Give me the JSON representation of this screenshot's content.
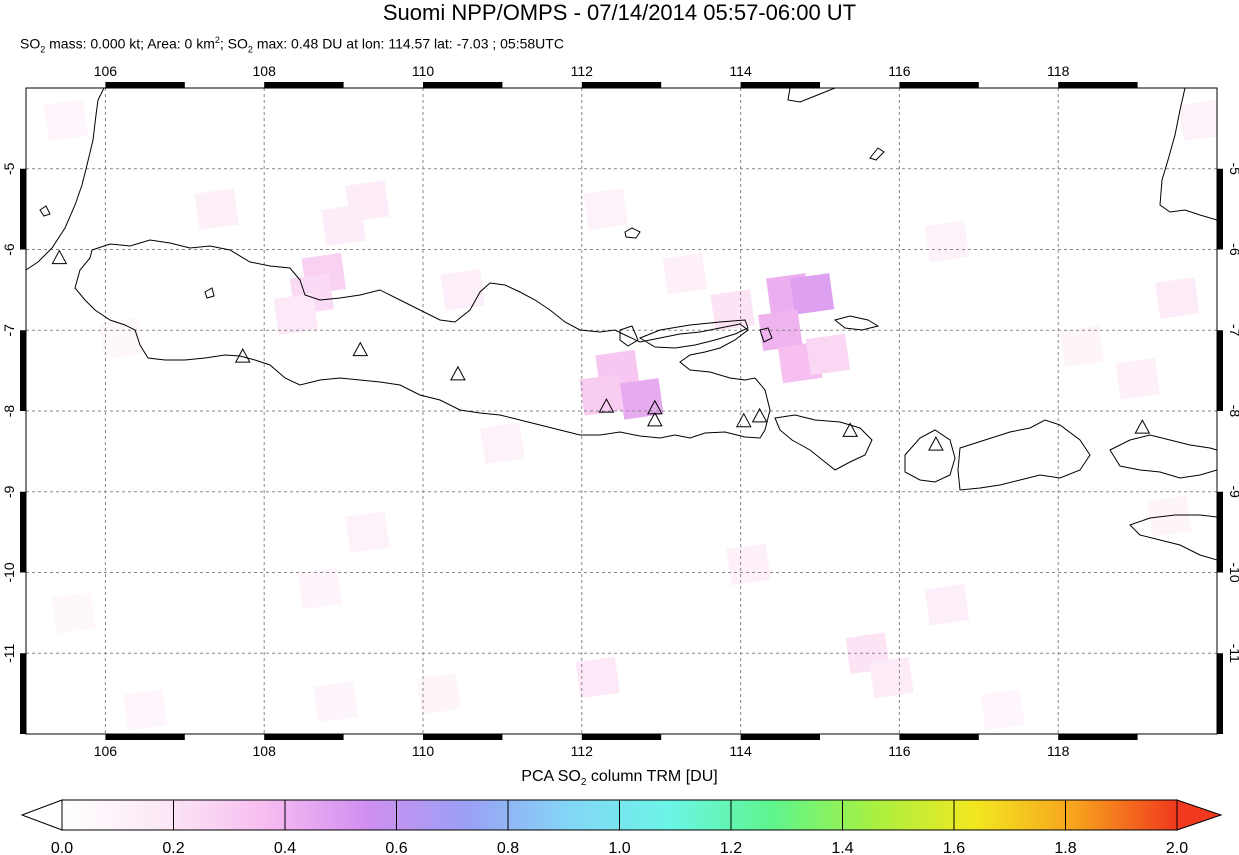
{
  "title": "Suomi NPP/OMPS - 07/14/2014 05:57-06:00 UT",
  "subtitle": {
    "mass_label": "SO",
    "mass_sub": "2",
    "mass_text": " mass: 0.000 kt; Area: 0 km",
    "area_sup": "2",
    "max_label": "; SO",
    "max_sub": "2",
    "max_text": " max: 0.48 DU at lon: 114.57 lat: -7.03 ; 05:58UTC"
  },
  "map": {
    "lon_range": [
      105,
      120
    ],
    "lat_range": [
      -12,
      -4
    ],
    "lon_ticks": [
      "106",
      "108",
      "110",
      "112",
      "114",
      "116",
      "118"
    ],
    "lat_ticks": [
      "-5",
      "-6",
      "-7",
      "-8",
      "-9",
      "-10",
      "-11"
    ],
    "grid": true
  },
  "volcanoes": [
    {
      "lon": 105.42,
      "lat": -6.1
    },
    {
      "lon": 107.73,
      "lat": -7.32
    },
    {
      "lon": 109.21,
      "lat": -7.24
    },
    {
      "lon": 110.44,
      "lat": -7.54
    },
    {
      "lon": 112.31,
      "lat": -7.94
    },
    {
      "lon": 112.92,
      "lat": -7.96
    },
    {
      "lon": 112.92,
      "lat": -8.11
    },
    {
      "lon": 114.04,
      "lat": -8.12
    },
    {
      "lon": 114.24,
      "lat": -8.06
    },
    {
      "lon": 115.38,
      "lat": -8.24
    },
    {
      "lon": 116.46,
      "lat": -8.41
    },
    {
      "lon": 119.06,
      "lat": -8.2
    }
  ],
  "so2_cells": [
    {
      "lon": 112.45,
      "lat": -7.5,
      "v": 0.32
    },
    {
      "lon": 112.75,
      "lat": -7.85,
      "v": 0.44
    },
    {
      "lon": 112.25,
      "lat": -7.8,
      "v": 0.3
    },
    {
      "lon": 114.6,
      "lat": -6.55,
      "v": 0.42
    },
    {
      "lon": 114.9,
      "lat": -6.55,
      "v": 0.48
    },
    {
      "lon": 114.5,
      "lat": -7.0,
      "v": 0.4
    },
    {
      "lon": 114.75,
      "lat": -7.4,
      "v": 0.36
    },
    {
      "lon": 115.1,
      "lat": -7.3,
      "v": 0.25
    },
    {
      "lon": 113.9,
      "lat": -6.75,
      "v": 0.2
    },
    {
      "lon": 108.75,
      "lat": -6.3,
      "v": 0.28
    },
    {
      "lon": 108.6,
      "lat": -6.55,
      "v": 0.24
    },
    {
      "lon": 108.4,
      "lat": -6.8,
      "v": 0.18
    },
    {
      "lon": 109.3,
      "lat": -5.4,
      "v": 0.15
    },
    {
      "lon": 109.0,
      "lat": -5.7,
      "v": 0.14
    },
    {
      "lon": 107.4,
      "lat": -5.5,
      "v": 0.12
    },
    {
      "lon": 110.5,
      "lat": -6.5,
      "v": 0.13
    },
    {
      "lon": 112.3,
      "lat": -5.5,
      "v": 0.1
    },
    {
      "lon": 113.3,
      "lat": -6.3,
      "v": 0.12
    },
    {
      "lon": 116.6,
      "lat": -5.9,
      "v": 0.1
    },
    {
      "lon": 118.3,
      "lat": -7.2,
      "v": 0.08
    },
    {
      "lon": 119.5,
      "lat": -6.6,
      "v": 0.15
    },
    {
      "lon": 119.0,
      "lat": -7.6,
      "v": 0.12
    },
    {
      "lon": 119.8,
      "lat": -4.4,
      "v": 0.1
    },
    {
      "lon": 105.5,
      "lat": -4.4,
      "v": 0.07
    },
    {
      "lon": 106.2,
      "lat": -7.1,
      "v": 0.06
    },
    {
      "lon": 111.0,
      "lat": -8.4,
      "v": 0.1
    },
    {
      "lon": 109.3,
      "lat": -9.5,
      "v": 0.1
    },
    {
      "lon": 108.7,
      "lat": -10.2,
      "v": 0.09
    },
    {
      "lon": 110.2,
      "lat": -11.5,
      "v": 0.08
    },
    {
      "lon": 108.9,
      "lat": -11.6,
      "v": 0.09
    },
    {
      "lon": 112.2,
      "lat": -11.3,
      "v": 0.18
    },
    {
      "lon": 114.1,
      "lat": -9.9,
      "v": 0.12
    },
    {
      "lon": 115.6,
      "lat": -11.0,
      "v": 0.2
    },
    {
      "lon": 115.9,
      "lat": -11.3,
      "v": 0.15
    },
    {
      "lon": 116.6,
      "lat": -10.4,
      "v": 0.13
    },
    {
      "lon": 117.3,
      "lat": -11.7,
      "v": 0.07
    },
    {
      "lon": 119.4,
      "lat": -9.3,
      "v": 0.08
    },
    {
      "lon": 106.5,
      "lat": -11.7,
      "v": 0.07
    },
    {
      "lon": 105.6,
      "lat": -10.5,
      "v": 0.06
    }
  ],
  "colorbar": {
    "title_prefix": "PCA SO",
    "title_sub": "2",
    "title_suffix": " column TRM [DU]",
    "range": [
      0.0,
      2.0
    ],
    "tick_labels": [
      "0.0",
      "0.2",
      "0.4",
      "0.6",
      "0.8",
      "1.0",
      "1.2",
      "1.4",
      "1.6",
      "1.8",
      "2.0"
    ],
    "stops": [
      "#ffffff",
      "#fce8f6",
      "#f7bdf0",
      "#d08ff0",
      "#9aa0f5",
      "#84d6f6",
      "#6bf5e6",
      "#5ef58e",
      "#a7f042",
      "#f2e820",
      "#f7a21e",
      "#f0391e"
    ]
  }
}
